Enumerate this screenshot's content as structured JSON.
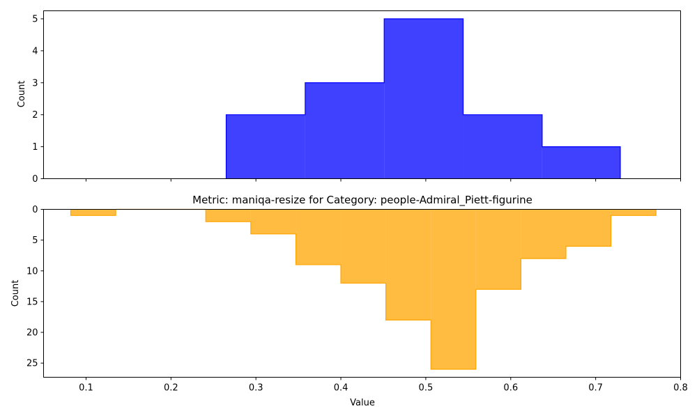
{
  "chart_data": [
    {
      "type": "histogram",
      "panel": "top",
      "title": "",
      "xlabel": "",
      "ylabel": "Count",
      "xlim": [
        0.05,
        0.8
      ],
      "ylim": [
        0,
        5.25
      ],
      "yticks": [
        0,
        1,
        2,
        3,
        4,
        5
      ],
      "xticks": [
        0.1,
        0.2,
        0.3,
        0.4,
        0.5,
        0.6,
        0.7,
        0.8
      ],
      "show_xtick_labels": false,
      "inverted_y": false,
      "fill_color": "#0000ff",
      "edge_color": "#0000ff",
      "fill_alpha": 0.75,
      "bins": [
        {
          "x0": 0.265,
          "x1": 0.358,
          "count": 2
        },
        {
          "x0": 0.358,
          "x1": 0.451,
          "count": 3
        },
        {
          "x0": 0.451,
          "x1": 0.544,
          "count": 5
        },
        {
          "x0": 0.544,
          "x1": 0.637,
          "count": 2
        },
        {
          "x0": 0.637,
          "x1": 0.729,
          "count": 1
        }
      ]
    },
    {
      "type": "histogram",
      "panel": "bottom",
      "title": "Metric: maniqa-resize for Category: people-Admiral_Piett-figurine",
      "xlabel": "Value",
      "ylabel": "Count",
      "xlim": [
        0.05,
        0.8
      ],
      "ylim": [
        27.3,
        0
      ],
      "yticks": [
        0,
        5,
        10,
        15,
        20,
        25
      ],
      "xticks": [
        0.1,
        0.2,
        0.3,
        0.4,
        0.5,
        0.6,
        0.7,
        0.8
      ],
      "show_xtick_labels": true,
      "inverted_y": true,
      "fill_color": "#ffa500",
      "edge_color": "#ffa500",
      "fill_alpha": 0.75,
      "bins": [
        {
          "x0": 0.082,
          "x1": 0.135,
          "count": 1
        },
        {
          "x0": 0.135,
          "x1": 0.188,
          "count": 0
        },
        {
          "x0": 0.188,
          "x1": 0.241,
          "count": 0
        },
        {
          "x0": 0.241,
          "x1": 0.294,
          "count": 2
        },
        {
          "x0": 0.294,
          "x1": 0.347,
          "count": 4
        },
        {
          "x0": 0.347,
          "x1": 0.4,
          "count": 9
        },
        {
          "x0": 0.4,
          "x1": 0.453,
          "count": 12
        },
        {
          "x0": 0.453,
          "x1": 0.506,
          "count": 18
        },
        {
          "x0": 0.506,
          "x1": 0.559,
          "count": 26
        },
        {
          "x0": 0.559,
          "x1": 0.612,
          "count": 13
        },
        {
          "x0": 0.612,
          "x1": 0.665,
          "count": 8
        },
        {
          "x0": 0.665,
          "x1": 0.718,
          "count": 6
        },
        {
          "x0": 0.718,
          "x1": 0.771,
          "count": 1
        }
      ]
    }
  ]
}
